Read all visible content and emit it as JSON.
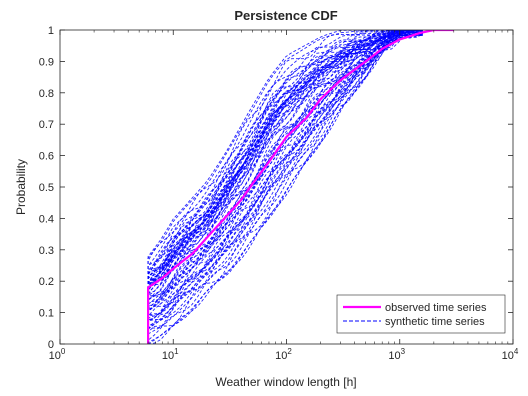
{
  "chart_data": {
    "type": "line",
    "title": "Persistence CDF",
    "xlabel": "Weather window length [h]",
    "ylabel": "Probability",
    "xscale": "log",
    "xlim": [
      1,
      10000
    ],
    "ylim": [
      0,
      1
    ],
    "grid": false,
    "legend_position": "bottom-right",
    "x_ticks": [
      {
        "value": 1,
        "base": "10",
        "exp": "0"
      },
      {
        "value": 10,
        "base": "10",
        "exp": "1"
      },
      {
        "value": 100,
        "base": "10",
        "exp": "2"
      },
      {
        "value": 1000,
        "base": "10",
        "exp": "3"
      },
      {
        "value": 10000,
        "base": "10",
        "exp": "4"
      }
    ],
    "y_ticks": [
      {
        "value": 0,
        "label": "0"
      },
      {
        "value": 0.1,
        "label": "0.1"
      },
      {
        "value": 0.2,
        "label": "0.2"
      },
      {
        "value": 0.3,
        "label": "0.3"
      },
      {
        "value": 0.4,
        "label": "0.4"
      },
      {
        "value": 0.5,
        "label": "0.5"
      },
      {
        "value": 0.6,
        "label": "0.6"
      },
      {
        "value": 0.7,
        "label": "0.7"
      },
      {
        "value": 0.8,
        "label": "0.8"
      },
      {
        "value": 0.9,
        "label": "0.9"
      },
      {
        "value": 1,
        "label": "1"
      }
    ],
    "series": [
      {
        "name": "observed time series",
        "color": "#ff00ff",
        "line_style": "solid",
        "x": [
          6,
          6,
          8,
          10,
          15,
          20,
          30,
          40,
          50,
          70,
          100,
          150,
          200,
          300,
          500,
          700,
          1000,
          1500,
          2000,
          3000
        ],
        "y": [
          0,
          0.18,
          0.21,
          0.24,
          0.29,
          0.34,
          0.41,
          0.46,
          0.51,
          0.58,
          0.66,
          0.72,
          0.78,
          0.84,
          0.9,
          0.94,
          0.97,
          0.99,
          1.0,
          1.0
        ]
      },
      {
        "name": "synthetic time series",
        "color": "#0000ff",
        "line_style": "dashed",
        "envelope_lower": {
          "x": [
            6,
            8,
            10,
            15,
            20,
            30,
            50,
            100,
            200,
            300,
            500,
            700,
            1000
          ],
          "y": [
            0.0,
            0.02,
            0.05,
            0.11,
            0.16,
            0.22,
            0.32,
            0.48,
            0.64,
            0.74,
            0.85,
            0.93,
            0.98
          ]
        },
        "envelope_upper": {
          "x": [
            6,
            8,
            10,
            15,
            20,
            30,
            50,
            70,
            100,
            200,
            300
          ],
          "y": [
            0.28,
            0.34,
            0.4,
            0.47,
            0.52,
            0.62,
            0.76,
            0.85,
            0.92,
            0.98,
            1.0
          ]
        }
      }
    ]
  }
}
